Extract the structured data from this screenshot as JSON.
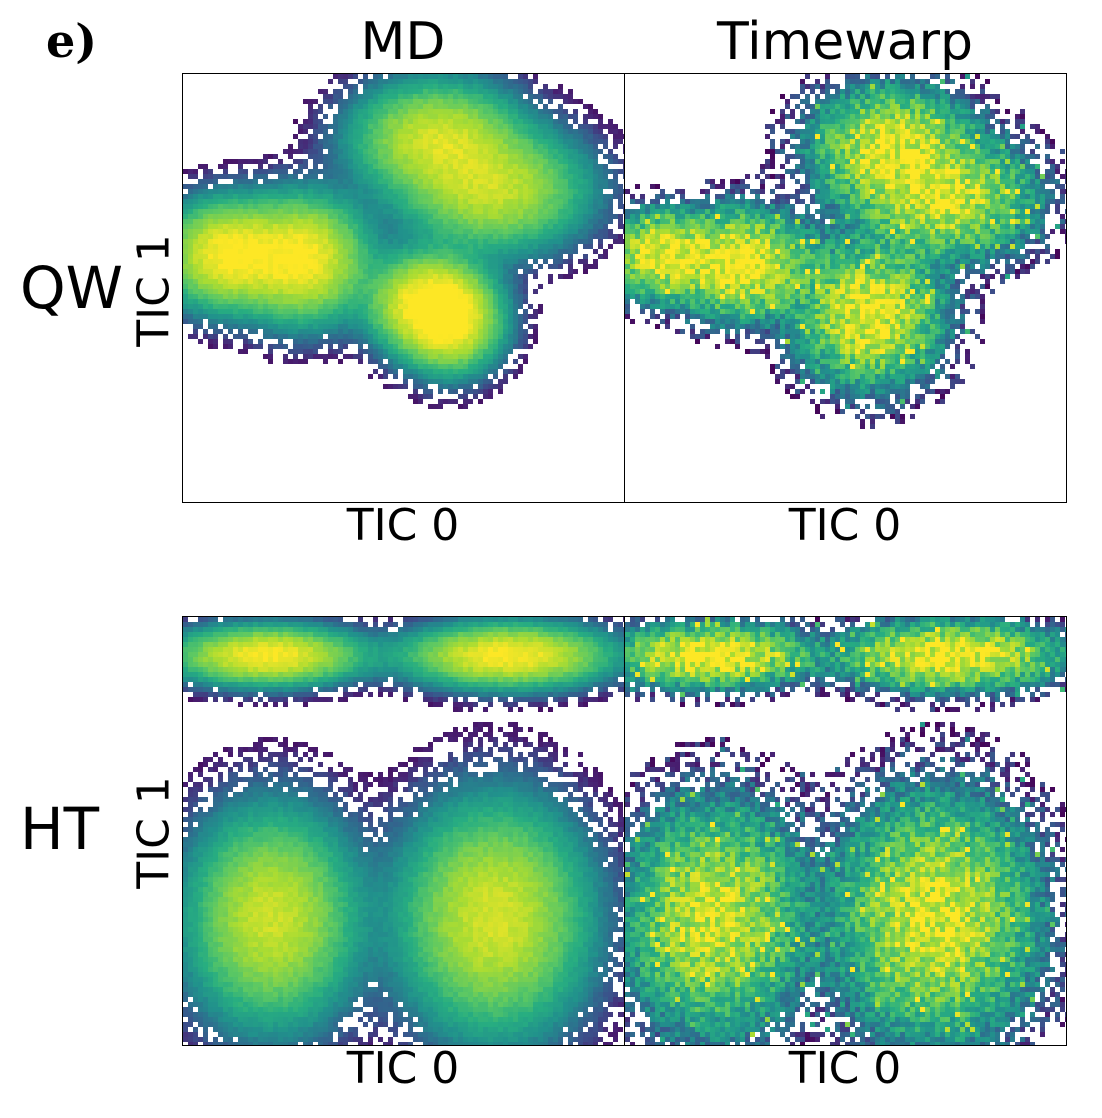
{
  "panel_label": "e)",
  "chart_data": {
    "type": "heatmap",
    "colormap": "viridis",
    "columns": [
      "MD",
      "Timewarp"
    ],
    "rows": [
      "QW",
      "HT"
    ],
    "xlabel": "TIC 0",
    "ylabel": "TIC 1",
    "grid": false,
    "ticks": "none",
    "panels": [
      {
        "row": "QW",
        "column": "MD",
        "style": "smooth",
        "peaks": [
          [
            0.1,
            0.58
          ],
          [
            0.27,
            0.57
          ],
          [
            0.55,
            0.47
          ],
          [
            0.6,
            0.42
          ],
          [
            0.57,
            0.85
          ],
          [
            0.7,
            0.73
          ]
        ]
      },
      {
        "row": "QW",
        "column": "Timewarp",
        "style": "noisy",
        "peaks": [
          [
            0.08,
            0.58
          ],
          [
            0.26,
            0.56
          ],
          [
            0.55,
            0.44
          ],
          [
            0.6,
            0.83
          ],
          [
            0.72,
            0.71
          ]
        ]
      },
      {
        "row": "HT",
        "column": "MD",
        "style": "smooth",
        "peaks": [
          [
            0.19,
            0.91
          ],
          [
            0.73,
            0.91
          ],
          [
            0.2,
            0.3
          ],
          [
            0.7,
            0.3
          ]
        ]
      },
      {
        "row": "HT",
        "column": "Timewarp",
        "style": "noisy",
        "peaks": [
          [
            0.19,
            0.91
          ],
          [
            0.73,
            0.91
          ],
          [
            0.2,
            0.3
          ],
          [
            0.7,
            0.3
          ]
        ]
      }
    ]
  }
}
